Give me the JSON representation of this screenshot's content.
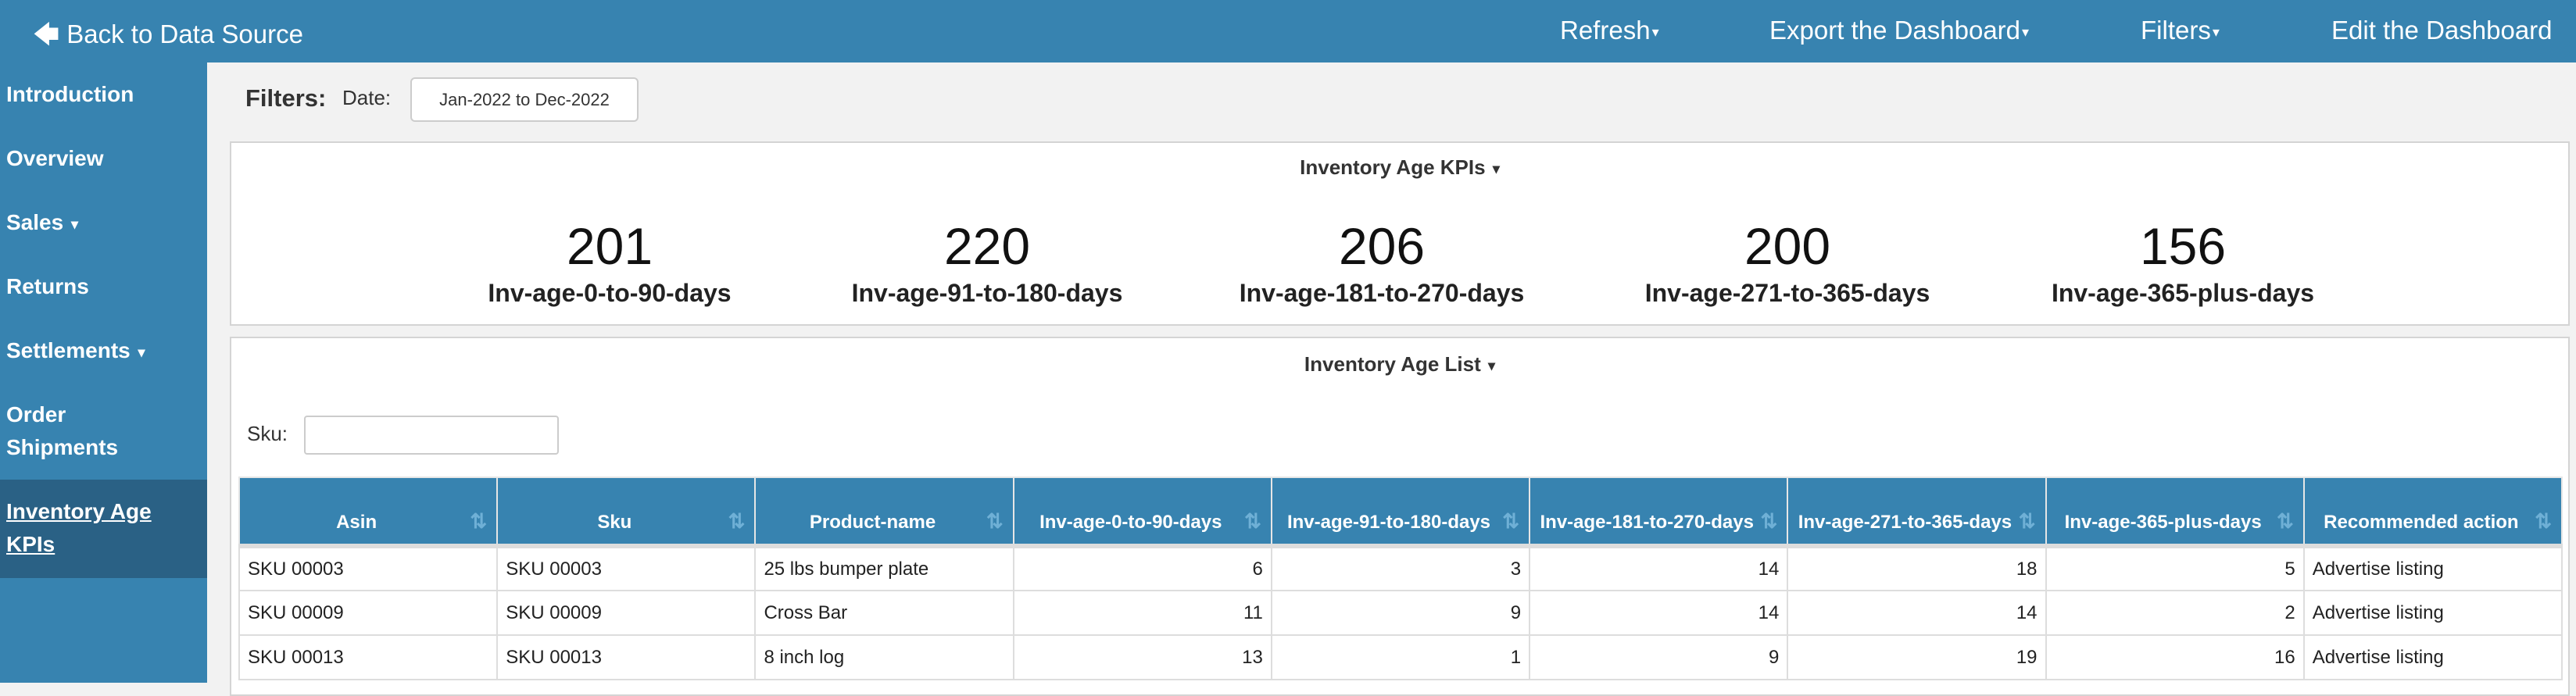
{
  "topbar": {
    "back_label": "Back to Data Source",
    "refresh": "Refresh",
    "export": "Export the Dashboard",
    "filters": "Filters",
    "edit": "Edit the Dashboard"
  },
  "sidebar": {
    "items": [
      {
        "label": "Introduction"
      },
      {
        "label": "Overview"
      },
      {
        "label": "Sales"
      },
      {
        "label": "Returns"
      },
      {
        "label": "Settlements"
      },
      {
        "label": "Order Shipments"
      },
      {
        "label": "Inventory Age KPIs",
        "active": true
      }
    ]
  },
  "filters": {
    "label": "Filters:",
    "date_label": "Date:",
    "date_value": "Jan-2022 to Dec-2022"
  },
  "kpi_panel": {
    "title": "Inventory Age KPIs",
    "kpis": [
      {
        "value": "201",
        "label": "Inv-age-0-to-90-days"
      },
      {
        "value": "220",
        "label": "Inv-age-91-to-180-days"
      },
      {
        "value": "206",
        "label": "Inv-age-181-to-270-days"
      },
      {
        "value": "200",
        "label": "Inv-age-271-to-365-days"
      },
      {
        "value": "156",
        "label": "Inv-age-365-plus-days"
      }
    ]
  },
  "list_panel": {
    "title": "Inventory Age List",
    "sku_label": "Sku:",
    "sku_value": "",
    "columns": [
      "Asin",
      "Sku",
      "Product-name",
      "Inv-age-0-to-90-days",
      "Inv-age-91-to-180-days",
      "Inv-age-181-to-270-days",
      "Inv-age-271-to-365-days",
      "Inv-age-365-plus-days",
      "Recommended action"
    ],
    "rows": [
      [
        "SKU 00003",
        "SKU 00003",
        "25 lbs bumper plate",
        "6",
        "3",
        "14",
        "18",
        "5",
        "Advertise listing"
      ],
      [
        "SKU 00009",
        "SKU 00009",
        "Cross Bar",
        "11",
        "9",
        "14",
        "14",
        "2",
        "Advertise listing"
      ],
      [
        "SKU 00013",
        "SKU 00013",
        "8 inch log",
        "13",
        "1",
        "9",
        "19",
        "16",
        "Advertise listing"
      ]
    ]
  },
  "colors": {
    "brand": "#3783b0",
    "active_nav": "#2a6185"
  }
}
